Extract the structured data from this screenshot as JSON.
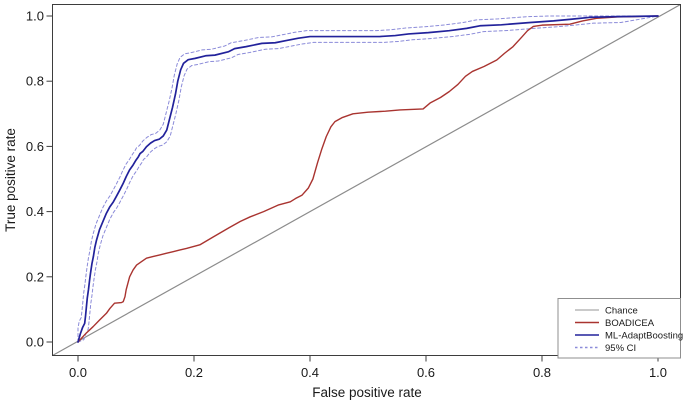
{
  "figure": {
    "background": "#ffffff",
    "frame_color": "#3d3d3d",
    "axes": {
      "x": {
        "label": "False positive rate",
        "tick_labels": [
          "0.0",
          "0.2",
          "0.4",
          "0.6",
          "0.8",
          "1.0"
        ],
        "tick_values": [
          0,
          0.2,
          0.4,
          0.6,
          0.8,
          1.0
        ],
        "range": [
          0,
          1
        ]
      },
      "y": {
        "label": "True positive rate",
        "tick_labels": [
          "0.0",
          "0.2",
          "0.4",
          "0.6",
          "0.8",
          "1.0"
        ],
        "tick_values": [
          0,
          0.2,
          0.4,
          0.6,
          0.8,
          1.0
        ],
        "range": [
          0,
          1
        ]
      }
    },
    "legend": {
      "position": "lower-right",
      "border_color": "#8f8f8f",
      "items": [
        {
          "label": "Chance",
          "color": "#b8b8b8",
          "style": "solid"
        },
        {
          "label": "BOADICEA",
          "color": "#a93430",
          "style": "solid"
        },
        {
          "label": "ML-AdaptBoosting",
          "color": "#22229b",
          "style": "solid"
        },
        {
          "label": "95% CI",
          "color": "#8b8bd9",
          "style": "dashed"
        }
      ]
    }
  },
  "chart_data": {
    "type": "line",
    "title": "",
    "xlabel": "False positive rate",
    "ylabel": "True positive rate",
    "xlim": [
      0,
      1
    ],
    "ylim": [
      0,
      1
    ],
    "grid": false,
    "legend_position": "lower right",
    "series": [
      {
        "name": "Chance",
        "color": "#8c8c8c",
        "style": "solid",
        "width": 1.2,
        "extend_to_frame": true,
        "points": [
          [
            0,
            0
          ],
          [
            1,
            1
          ]
        ]
      },
      {
        "name": "BOADICEA",
        "color": "#a93430",
        "style": "solid",
        "width": 1.4,
        "points": [
          [
            0,
            0
          ],
          [
            0.014,
            0.027
          ],
          [
            0.026,
            0.047
          ],
          [
            0.037,
            0.067
          ],
          [
            0.049,
            0.088
          ],
          [
            0.055,
            0.103
          ],
          [
            0.063,
            0.119
          ],
          [
            0.075,
            0.121
          ],
          [
            0.078,
            0.124
          ],
          [
            0.081,
            0.139
          ],
          [
            0.083,
            0.16
          ],
          [
            0.086,
            0.18
          ],
          [
            0.089,
            0.2
          ],
          [
            0.095,
            0.221
          ],
          [
            0.101,
            0.236
          ],
          [
            0.109,
            0.246
          ],
          [
            0.118,
            0.257
          ],
          [
            0.129,
            0.262
          ],
          [
            0.141,
            0.267
          ],
          [
            0.152,
            0.272
          ],
          [
            0.164,
            0.277
          ],
          [
            0.175,
            0.282
          ],
          [
            0.187,
            0.287
          ],
          [
            0.21,
            0.298
          ],
          [
            0.233,
            0.322
          ],
          [
            0.26,
            0.35
          ],
          [
            0.28,
            0.37
          ],
          [
            0.297,
            0.384
          ],
          [
            0.32,
            0.4
          ],
          [
            0.345,
            0.42
          ],
          [
            0.366,
            0.43
          ],
          [
            0.375,
            0.44
          ],
          [
            0.386,
            0.45
          ],
          [
            0.397,
            0.472
          ],
          [
            0.405,
            0.5
          ],
          [
            0.413,
            0.55
          ],
          [
            0.42,
            0.59
          ],
          [
            0.428,
            0.63
          ],
          [
            0.436,
            0.66
          ],
          [
            0.443,
            0.676
          ],
          [
            0.455,
            0.688
          ],
          [
            0.474,
            0.7
          ],
          [
            0.5,
            0.705
          ],
          [
            0.53,
            0.708
          ],
          [
            0.555,
            0.712
          ],
          [
            0.595,
            0.715
          ],
          [
            0.607,
            0.733
          ],
          [
            0.625,
            0.75
          ],
          [
            0.64,
            0.768
          ],
          [
            0.655,
            0.79
          ],
          [
            0.668,
            0.815
          ],
          [
            0.68,
            0.83
          ],
          [
            0.7,
            0.845
          ],
          [
            0.722,
            0.865
          ],
          [
            0.735,
            0.885
          ],
          [
            0.75,
            0.906
          ],
          [
            0.765,
            0.935
          ],
          [
            0.775,
            0.955
          ],
          [
            0.785,
            0.968
          ],
          [
            0.8,
            0.972
          ],
          [
            0.848,
            0.975
          ],
          [
            0.87,
            0.985
          ],
          [
            0.894,
            0.993
          ],
          [
            0.93,
            0.997
          ],
          [
            1,
            1
          ]
        ]
      },
      {
        "name": "ML-AdaptBoosting",
        "color": "#22229b",
        "style": "solid",
        "width": 1.7,
        "points": [
          [
            0,
            0
          ],
          [
            0.004,
            0.025
          ],
          [
            0.008,
            0.045
          ],
          [
            0.0115,
            0.057
          ],
          [
            0.013,
            0.08
          ],
          [
            0.0145,
            0.108
          ],
          [
            0.016,
            0.135
          ],
          [
            0.018,
            0.16
          ],
          [
            0.02,
            0.19
          ],
          [
            0.0215,
            0.21
          ],
          [
            0.024,
            0.24
          ],
          [
            0.0265,
            0.262
          ],
          [
            0.029,
            0.29
          ],
          [
            0.032,
            0.313
          ],
          [
            0.037,
            0.344
          ],
          [
            0.044,
            0.374
          ],
          [
            0.049,
            0.395
          ],
          [
            0.055,
            0.415
          ],
          [
            0.061,
            0.43
          ],
          [
            0.066,
            0.446
          ],
          [
            0.072,
            0.466
          ],
          [
            0.078,
            0.487
          ],
          [
            0.083,
            0.507
          ],
          [
            0.089,
            0.528
          ],
          [
            0.095,
            0.543
          ],
          [
            0.1,
            0.558
          ],
          [
            0.104,
            0.568
          ],
          [
            0.107,
            0.578
          ],
          [
            0.112,
            0.585
          ],
          [
            0.118,
            0.599
          ],
          [
            0.125,
            0.61
          ],
          [
            0.132,
            0.618
          ],
          [
            0.14,
            0.622
          ],
          [
            0.147,
            0.632
          ],
          [
            0.153,
            0.65
          ],
          [
            0.158,
            0.685
          ],
          [
            0.163,
            0.72
          ],
          [
            0.168,
            0.76
          ],
          [
            0.172,
            0.8
          ],
          [
            0.177,
            0.835
          ],
          [
            0.182,
            0.855
          ],
          [
            0.19,
            0.866
          ],
          [
            0.202,
            0.87
          ],
          [
            0.22,
            0.878
          ],
          [
            0.236,
            0.88
          ],
          [
            0.259,
            0.89
          ],
          [
            0.27,
            0.9
          ],
          [
            0.29,
            0.906
          ],
          [
            0.317,
            0.916
          ],
          [
            0.34,
            0.918
          ],
          [
            0.36,
            0.925
          ],
          [
            0.38,
            0.932
          ],
          [
            0.4,
            0.937
          ],
          [
            0.52,
            0.937
          ],
          [
            0.547,
            0.94
          ],
          [
            0.57,
            0.945
          ],
          [
            0.604,
            0.949
          ],
          [
            0.64,
            0.955
          ],
          [
            0.67,
            0.962
          ],
          [
            0.693,
            0.97
          ],
          [
            0.73,
            0.973
          ],
          [
            0.78,
            0.98
          ],
          [
            0.82,
            0.985
          ],
          [
            0.85,
            0.99
          ],
          [
            0.883,
            0.996
          ],
          [
            0.93,
            0.998
          ],
          [
            1,
            1
          ]
        ]
      },
      {
        "name": "95% CI",
        "color": "#8b8bd9",
        "style": "dashed",
        "width": 1,
        "derived_from": "ML-AdaptBoosting",
        "band_offset": {
          "dx": 0.006,
          "dy": 0.018
        }
      }
    ]
  }
}
